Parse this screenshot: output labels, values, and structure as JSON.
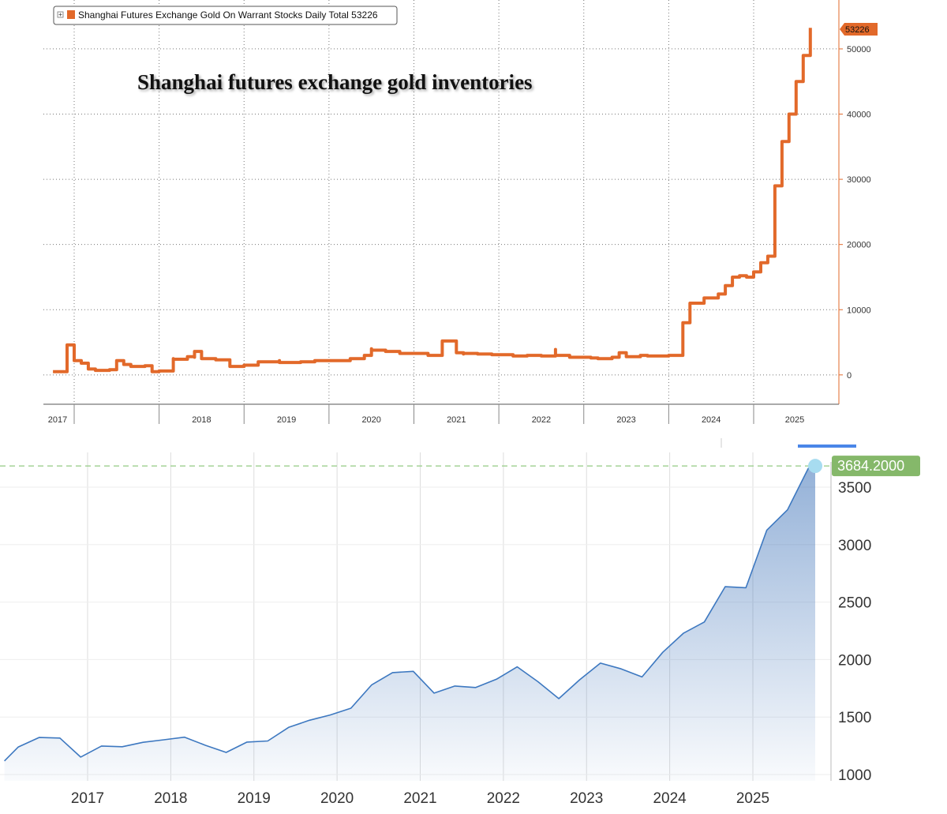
{
  "chart_data": [
    {
      "type": "line",
      "title": "Shanghai futures exchange gold inventories",
      "legend_text": "Shanghai Futures Exchange Gold On Warrant Stocks Daily Total 53226",
      "legend_position": "top-left",
      "last_value_label": "53226",
      "line_color": "#e2692a",
      "grid": true,
      "ylim": [
        -4500,
        57500
      ],
      "y_ticks": [
        0,
        10000,
        20000,
        30000,
        40000,
        50000
      ],
      "y_tick_labels": [
        "0",
        "10000",
        "20000",
        "30000",
        "40000",
        "50000"
      ],
      "x_year_labels": [
        "2017",
        "2018",
        "2019",
        "2020",
        "2021",
        "2022",
        "2023",
        "2024",
        "2025"
      ],
      "series": [
        {
          "name": "Shanghai Futures Exchange Gold On Warrant Stocks Daily Total",
          "x": [
            "2016-10",
            "2016-12",
            "2016-12",
            "2017-01",
            "2017-02",
            "2017-03",
            "2017-04",
            "2017-06",
            "2017-07",
            "2017-07",
            "2017-08",
            "2017-09",
            "2017-11",
            "2017-12",
            "2018-01",
            "2018-03",
            "2018-03",
            "2018-05",
            "2018-06",
            "2018-06",
            "2018-07",
            "2018-09",
            "2018-09",
            "2018-11",
            "2018-11",
            "2019-01",
            "2019-03",
            "2019-06",
            "2019-06",
            "2019-09",
            "2019-11",
            "2020-04",
            "2020-06",
            "2020-07",
            "2020-07",
            "2020-09",
            "2020-11",
            "2021-01",
            "2021-03",
            "2021-05",
            "2021-07",
            "2021-07",
            "2021-08",
            "2021-08",
            "2021-10",
            "2021-12",
            "2022-03",
            "2022-05",
            "2022-07",
            "2022-09",
            "2022-09",
            "2022-10",
            "2022-11",
            "2022-12",
            "2023-01",
            "2023-02",
            "2023-03",
            "2023-05",
            "2023-06",
            "2023-07",
            "2023-08",
            "2023-09",
            "2023-10",
            "2023-11",
            "2024-01",
            "2024-03",
            "2024-03",
            "2024-04",
            "2024-04",
            "2024-06",
            "2024-08",
            "2024-09",
            "2024-10",
            "2024-11",
            "2024-12",
            "2025-01",
            "2025-02",
            "2025-03",
            "2025-04",
            "2025-04",
            "2025-05",
            "2025-06",
            "2025-06",
            "2025-07",
            "2025-07",
            "2025-08",
            "2025-08",
            "2025-09",
            "2025-09",
            "2025-09"
          ],
          "values": [
            500,
            500,
            4600,
            2200,
            1800,
            900,
            700,
            800,
            1300,
            2200,
            1600,
            1300,
            1400,
            500,
            600,
            2500,
            2400,
            2800,
            2700,
            3600,
            2500,
            2500,
            2300,
            1500,
            1300,
            1500,
            2000,
            2200,
            1900,
            2000,
            2200,
            2500,
            3000,
            4000,
            3800,
            3600,
            3300,
            3300,
            3000,
            5200,
            3600,
            3400,
            3200,
            3300,
            3200,
            3100,
            2900,
            3000,
            2900,
            3900,
            3000,
            3000,
            2700,
            2700,
            2700,
            2600,
            2500,
            2700,
            3400,
            2800,
            2800,
            3000,
            2900,
            2900,
            3000,
            7800,
            8000,
            10200,
            11000,
            11800,
            12400,
            13700,
            15000,
            15200,
            15000,
            15800,
            17200,
            18200,
            28000,
            29000,
            35800,
            36500,
            40000,
            44000,
            45000,
            47000,
            49000,
            51000,
            52500,
            53226
          ]
        }
      ]
    },
    {
      "type": "area",
      "last_value_label": "3684.2000",
      "line_color": "#3d78c0",
      "flag_color": "#85b86a",
      "marker_color": "#a7dcf0",
      "grid": true,
      "ylim": [
        990,
        3760
      ],
      "y_ticks": [
        1000,
        1500,
        2000,
        2500,
        3000,
        3500
      ],
      "y_tick_labels": [
        "1000",
        "1500",
        "2000",
        "2500",
        "3000",
        "3500"
      ],
      "x_tick_labels": [
        "2017",
        "2018",
        "2019",
        "2020",
        "2021",
        "2022",
        "2023",
        "2024",
        "2025"
      ],
      "series": [
        {
          "x": [
            "2016-01",
            "2016-03",
            "2016-06",
            "2016-09",
            "2016-12",
            "2017-03",
            "2017-06",
            "2017-09",
            "2017-12",
            "2018-03",
            "2018-06",
            "2018-09",
            "2018-12",
            "2019-03",
            "2019-06",
            "2019-09",
            "2019-12",
            "2020-03",
            "2020-06",
            "2020-09",
            "2020-12",
            "2021-03",
            "2021-06",
            "2021-09",
            "2021-12",
            "2022-03",
            "2022-06",
            "2022-09",
            "2022-12",
            "2023-03",
            "2023-06",
            "2023-09",
            "2023-12",
            "2024-03",
            "2024-06",
            "2024-09",
            "2024-12",
            "2025-03",
            "2025-06",
            "2025-09",
            "2025-10"
          ],
          "values": [
            1118,
            1240,
            1322,
            1317,
            1152,
            1248,
            1242,
            1280,
            1302,
            1325,
            1254,
            1192,
            1282,
            1292,
            1410,
            1472,
            1518,
            1577,
            1780,
            1887,
            1898,
            1708,
            1770,
            1757,
            1829,
            1937,
            1807,
            1660,
            1824,
            1969,
            1919,
            1849,
            2063,
            2230,
            2327,
            2634,
            2625,
            3125,
            3303,
            3664,
            3684.2
          ]
        }
      ]
    }
  ]
}
